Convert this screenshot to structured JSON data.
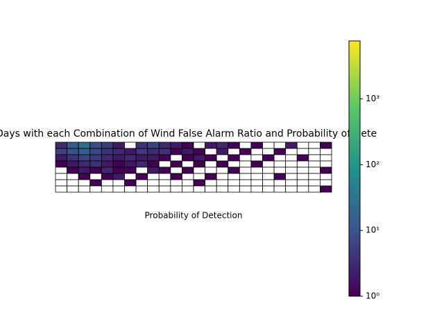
{
  "chart_data": {
    "type": "heatmap",
    "title": "Days with each Combination of Wind False Alarm Ratio and Probability of Dete",
    "xlabel": "Probability of Detection",
    "colormap": "viridis",
    "colorbar_scale": "log",
    "colorbar_lim": [
      1,
      7600
    ],
    "colorbar_ticks": [
      {
        "value": 1,
        "label": "10⁰"
      },
      {
        "value": 10,
        "label": "10¹"
      },
      {
        "value": 100,
        "label": "10²"
      },
      {
        "value": 1000,
        "label": "10³"
      }
    ],
    "z": [
      [
        3,
        12,
        25,
        8,
        5,
        2,
        null,
        4,
        6,
        3,
        2,
        1,
        null,
        2,
        3,
        1,
        null,
        1,
        null,
        null,
        2,
        null,
        null,
        1
      ],
      [
        6,
        9,
        14,
        7,
        4,
        3,
        2,
        5,
        3,
        4,
        1,
        2,
        1,
        null,
        2,
        null,
        1,
        null,
        null,
        1,
        null,
        null,
        null,
        null
      ],
      [
        2,
        4,
        6,
        5,
        3,
        2,
        3,
        2,
        2,
        1,
        null,
        1,
        2,
        1,
        null,
        1,
        null,
        null,
        1,
        null,
        null,
        1,
        null,
        null
      ],
      [
        1,
        2,
        3,
        4,
        2,
        1,
        2,
        3,
        1,
        null,
        1,
        null,
        1,
        null,
        1,
        null,
        null,
        1,
        null,
        null,
        null,
        null,
        null,
        null
      ],
      [
        null,
        1,
        2,
        1,
        3,
        1,
        1,
        null,
        2,
        1,
        null,
        1,
        null,
        null,
        null,
        1,
        null,
        null,
        null,
        null,
        null,
        null,
        null,
        1
      ],
      [
        null,
        null,
        1,
        null,
        1,
        2,
        null,
        1,
        null,
        null,
        1,
        null,
        null,
        1,
        null,
        null,
        null,
        null,
        null,
        1,
        null,
        null,
        null,
        null
      ],
      [
        null,
        null,
        null,
        1,
        null,
        null,
        1,
        null,
        null,
        null,
        null,
        null,
        1,
        null,
        null,
        null,
        null,
        null,
        null,
        null,
        null,
        null,
        null,
        null
      ],
      [
        null,
        null,
        null,
        null,
        null,
        null,
        null,
        null,
        null,
        null,
        null,
        null,
        null,
        null,
        null,
        null,
        null,
        null,
        null,
        null,
        null,
        null,
        null,
        1
      ]
    ]
  }
}
